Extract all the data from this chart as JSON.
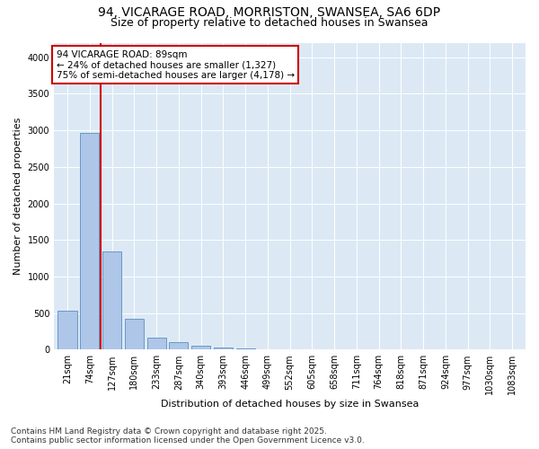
{
  "title_line1": "94, VICARAGE ROAD, MORRISTON, SWANSEA, SA6 6DP",
  "title_line2": "Size of property relative to detached houses in Swansea",
  "xlabel": "Distribution of detached houses by size in Swansea",
  "ylabel": "Number of detached properties",
  "categories": [
    "21sqm",
    "74sqm",
    "127sqm",
    "180sqm",
    "233sqm",
    "287sqm",
    "340sqm",
    "393sqm",
    "446sqm",
    "499sqm",
    "552sqm",
    "605sqm",
    "658sqm",
    "711sqm",
    "764sqm",
    "818sqm",
    "871sqm",
    "924sqm",
    "977sqm",
    "1030sqm",
    "1083sqm"
  ],
  "values": [
    530,
    2960,
    1340,
    420,
    160,
    100,
    50,
    30,
    20,
    0,
    0,
    0,
    0,
    0,
    0,
    0,
    0,
    0,
    0,
    0,
    0
  ],
  "bar_color": "#aec6e8",
  "bar_edge_color": "#5a8fc0",
  "vline_color": "#cc0000",
  "annotation_text": "94 VICARAGE ROAD: 89sqm\n← 24% of detached houses are smaller (1,327)\n75% of semi-detached houses are larger (4,178) →",
  "annotation_box_color": "#ffffff",
  "annotation_box_edge": "#cc0000",
  "ylim": [
    0,
    4200
  ],
  "yticks": [
    0,
    500,
    1000,
    1500,
    2000,
    2500,
    3000,
    3500,
    4000
  ],
  "plot_bg_color": "#dce9f5",
  "footer_line1": "Contains HM Land Registry data © Crown copyright and database right 2025.",
  "footer_line2": "Contains public sector information licensed under the Open Government Licence v3.0.",
  "title_fontsize": 10,
  "subtitle_fontsize": 9,
  "axis_label_fontsize": 8,
  "tick_fontsize": 7,
  "annotation_fontsize": 7.5,
  "footer_fontsize": 6.5
}
